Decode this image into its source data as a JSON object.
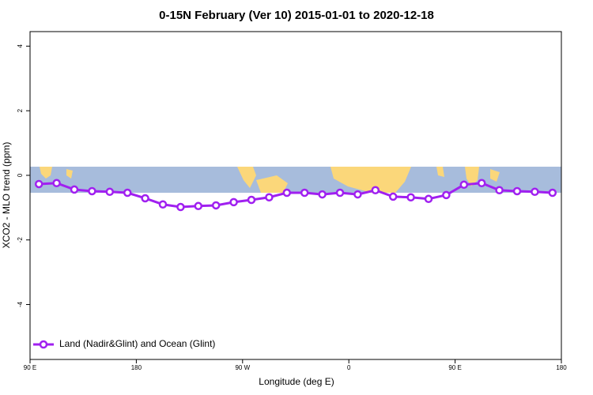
{
  "chart_data": {
    "type": "line",
    "title": "0-15N February (Ver 10)   2015-01-01 to 2020-12-18",
    "x_label": "Longitude (deg E)",
    "y_label": "XCO2 - MLO trend (ppm)",
    "xlim": [
      90,
      540
    ],
    "xticks": [
      {
        "value": 90,
        "label": "90 E"
      },
      180,
      {
        "value": 270,
        "label": "90 W"
      },
      {
        "value": 360,
        "label": "0"
      },
      {
        "value": 450,
        "label": "90 E"
      },
      {
        "value": 540,
        "label": "180"
      }
    ],
    "ylim": [
      -5.7,
      4.45
    ],
    "yticks": [
      4,
      2,
      0,
      -2,
      -4
    ],
    "legend": "bottom-left",
    "x": [
      97.5,
      112.5,
      127.5,
      142.5,
      157.5,
      172.5,
      187.5,
      202.5,
      217.5,
      232.5,
      247.5,
      262.5,
      277.5,
      292.5,
      307.5,
      322.5,
      337.5,
      352.5,
      367.5,
      382.5,
      397.5,
      412.5,
      427.5,
      442.5,
      457.5,
      472.5,
      487.5,
      502.5,
      517.5,
      532.5
    ],
    "series": [
      {
        "name": "Land (Nadir&Glint) and Ocean (Glint)",
        "color": "#a020f0",
        "values": [
          -0.27,
          -0.24,
          -0.44,
          -0.49,
          -0.51,
          -0.54,
          -0.71,
          -0.9,
          -0.98,
          -0.95,
          -0.93,
          -0.83,
          -0.76,
          -0.68,
          -0.54,
          -0.54,
          -0.59,
          -0.54,
          -0.59,
          -0.46,
          -0.66,
          -0.68,
          -0.73,
          -0.61,
          -0.29,
          -0.24,
          -0.46,
          -0.49,
          -0.51,
          -0.54
        ]
      }
    ]
  }
}
